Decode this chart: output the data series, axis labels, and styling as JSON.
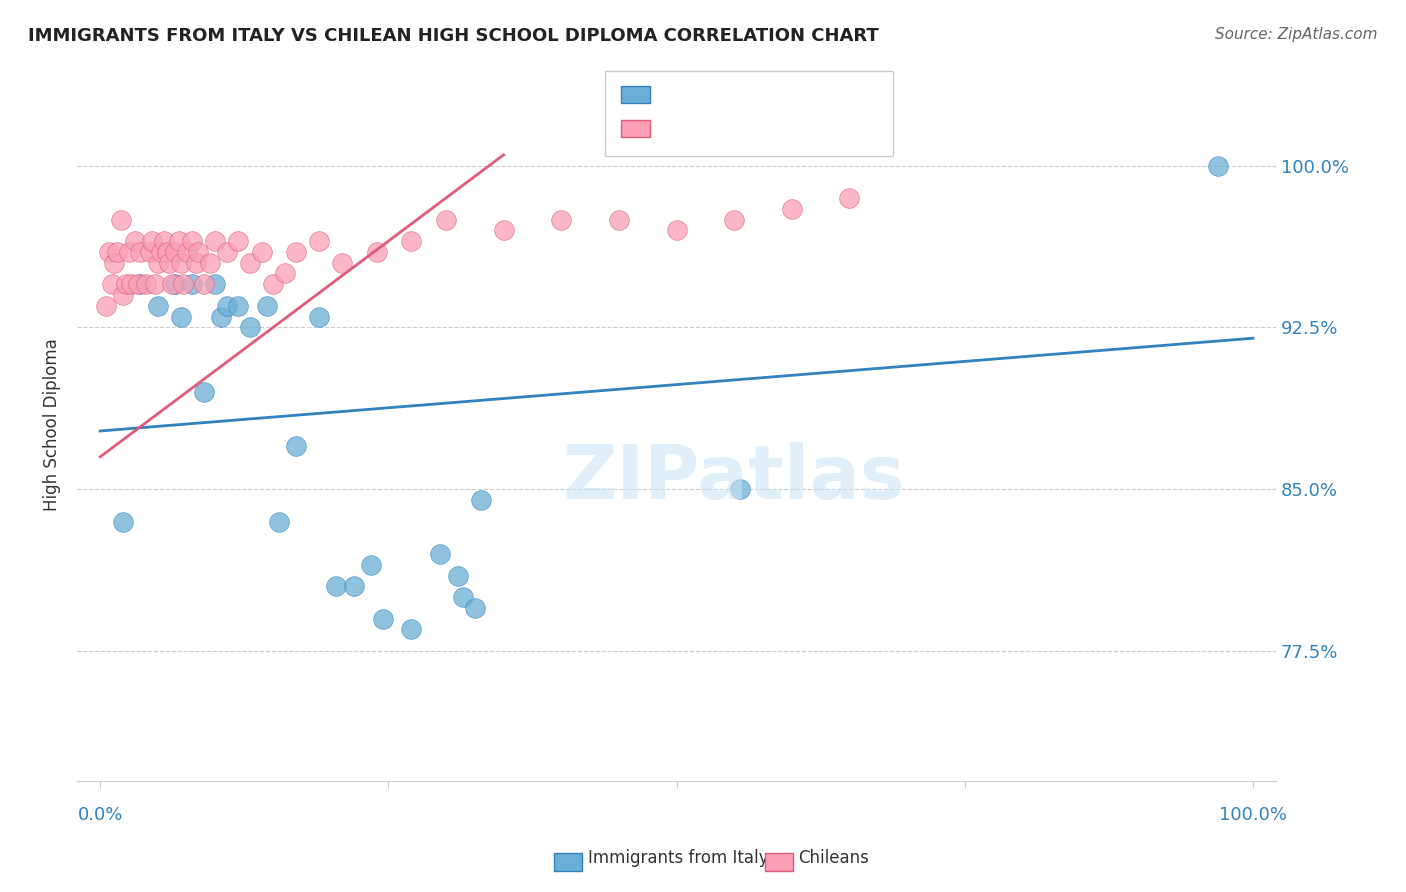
{
  "title": "IMMIGRANTS FROM ITALY VS CHILEAN HIGH SCHOOL DIPLOMA CORRELATION CHART",
  "source": "Source: ZipAtlas.com",
  "ylabel": "High School Diploma",
  "ytick_labels": [
    "77.5%",
    "85.0%",
    "92.5%",
    "100.0%"
  ],
  "ytick_values": [
    0.775,
    0.85,
    0.925,
    1.0
  ],
  "xmin": -0.02,
  "xmax": 1.02,
  "ymin": 0.715,
  "ymax": 1.045,
  "legend_label1": "Immigrants from Italy",
  "legend_label2": "Chileans",
  "color_blue": "#6baed6",
  "color_pink": "#fa9fb5",
  "color_blue_line": "#3182bd",
  "color_pink_line": "#e05a7a",
  "color_label": "#3182bd",
  "watermark": "ZIPatlas",
  "blue_x": [
    0.02,
    0.035,
    0.05,
    0.065,
    0.07,
    0.08,
    0.09,
    0.1,
    0.105,
    0.11,
    0.12,
    0.13,
    0.145,
    0.155,
    0.17,
    0.19,
    0.205,
    0.22,
    0.235,
    0.245,
    0.27,
    0.295,
    0.31,
    0.315,
    0.325,
    0.33,
    0.555,
    0.97
  ],
  "blue_y": [
    0.835,
    0.945,
    0.935,
    0.945,
    0.93,
    0.945,
    0.895,
    0.945,
    0.93,
    0.935,
    0.935,
    0.925,
    0.935,
    0.835,
    0.87,
    0.93,
    0.805,
    0.805,
    0.815,
    0.79,
    0.785,
    0.82,
    0.81,
    0.8,
    0.795,
    0.845,
    0.85,
    1.0
  ],
  "pink_x": [
    0.005,
    0.008,
    0.01,
    0.012,
    0.015,
    0.018,
    0.02,
    0.022,
    0.025,
    0.027,
    0.03,
    0.033,
    0.035,
    0.04,
    0.043,
    0.045,
    0.048,
    0.05,
    0.053,
    0.055,
    0.058,
    0.06,
    0.062,
    0.065,
    0.068,
    0.07,
    0.072,
    0.075,
    0.08,
    0.083,
    0.085,
    0.09,
    0.095,
    0.1,
    0.11,
    0.12,
    0.13,
    0.14,
    0.15,
    0.16,
    0.17,
    0.19,
    0.21,
    0.24,
    0.27,
    0.3,
    0.35,
    0.4,
    0.45,
    0.5,
    0.55,
    0.6,
    0.65
  ],
  "pink_y": [
    0.935,
    0.96,
    0.945,
    0.955,
    0.96,
    0.975,
    0.94,
    0.945,
    0.96,
    0.945,
    0.965,
    0.945,
    0.96,
    0.945,
    0.96,
    0.965,
    0.945,
    0.955,
    0.96,
    0.965,
    0.96,
    0.955,
    0.945,
    0.96,
    0.965,
    0.955,
    0.945,
    0.96,
    0.965,
    0.955,
    0.96,
    0.945,
    0.955,
    0.965,
    0.96,
    0.965,
    0.955,
    0.96,
    0.945,
    0.95,
    0.96,
    0.965,
    0.955,
    0.96,
    0.965,
    0.975,
    0.97,
    0.975,
    0.975,
    0.97,
    0.975,
    0.98,
    0.985
  ],
  "blue_line_x": [
    0.0,
    1.0
  ],
  "blue_line_y_start": 0.877,
  "blue_line_y_end": 0.92,
  "pink_line_x": [
    0.0,
    0.35
  ],
  "pink_line_y_start": 0.865,
  "pink_line_y_end": 1.005
}
